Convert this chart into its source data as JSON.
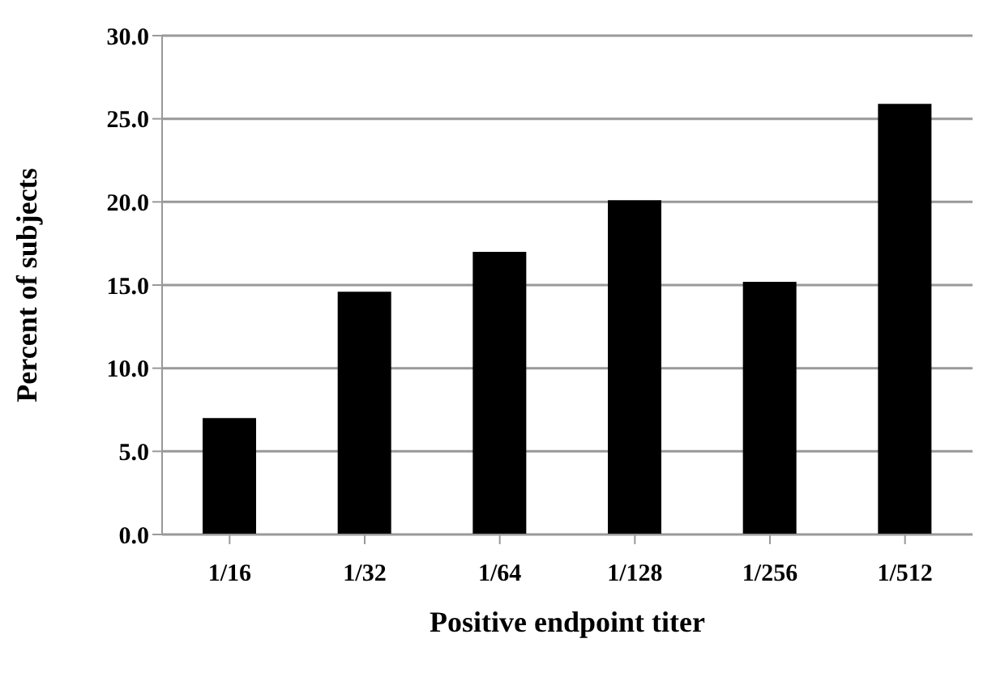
{
  "chart_data": {
    "type": "bar",
    "xlabel": "Positive endpoint titer",
    "ylabel": "Percent of subjects",
    "categories": [
      "1/16",
      "1/32",
      "1/64",
      "1/128",
      "1/256",
      "1/512"
    ],
    "values": [
      7.0,
      14.6,
      17.0,
      20.1,
      15.2,
      25.9
    ],
    "color": "#000000",
    "ylim": [
      0,
      30
    ],
    "yticks": [
      {
        "value": 0,
        "label": "0.0"
      },
      {
        "value": 5,
        "label": "5.0"
      },
      {
        "value": 10,
        "label": "10.0"
      },
      {
        "value": 15,
        "label": "15.0"
      },
      {
        "value": 20,
        "label": "20.0"
      },
      {
        "value": 25,
        "label": "25.0"
      },
      {
        "value": 30,
        "label": "30.0"
      }
    ],
    "grid": "y"
  }
}
